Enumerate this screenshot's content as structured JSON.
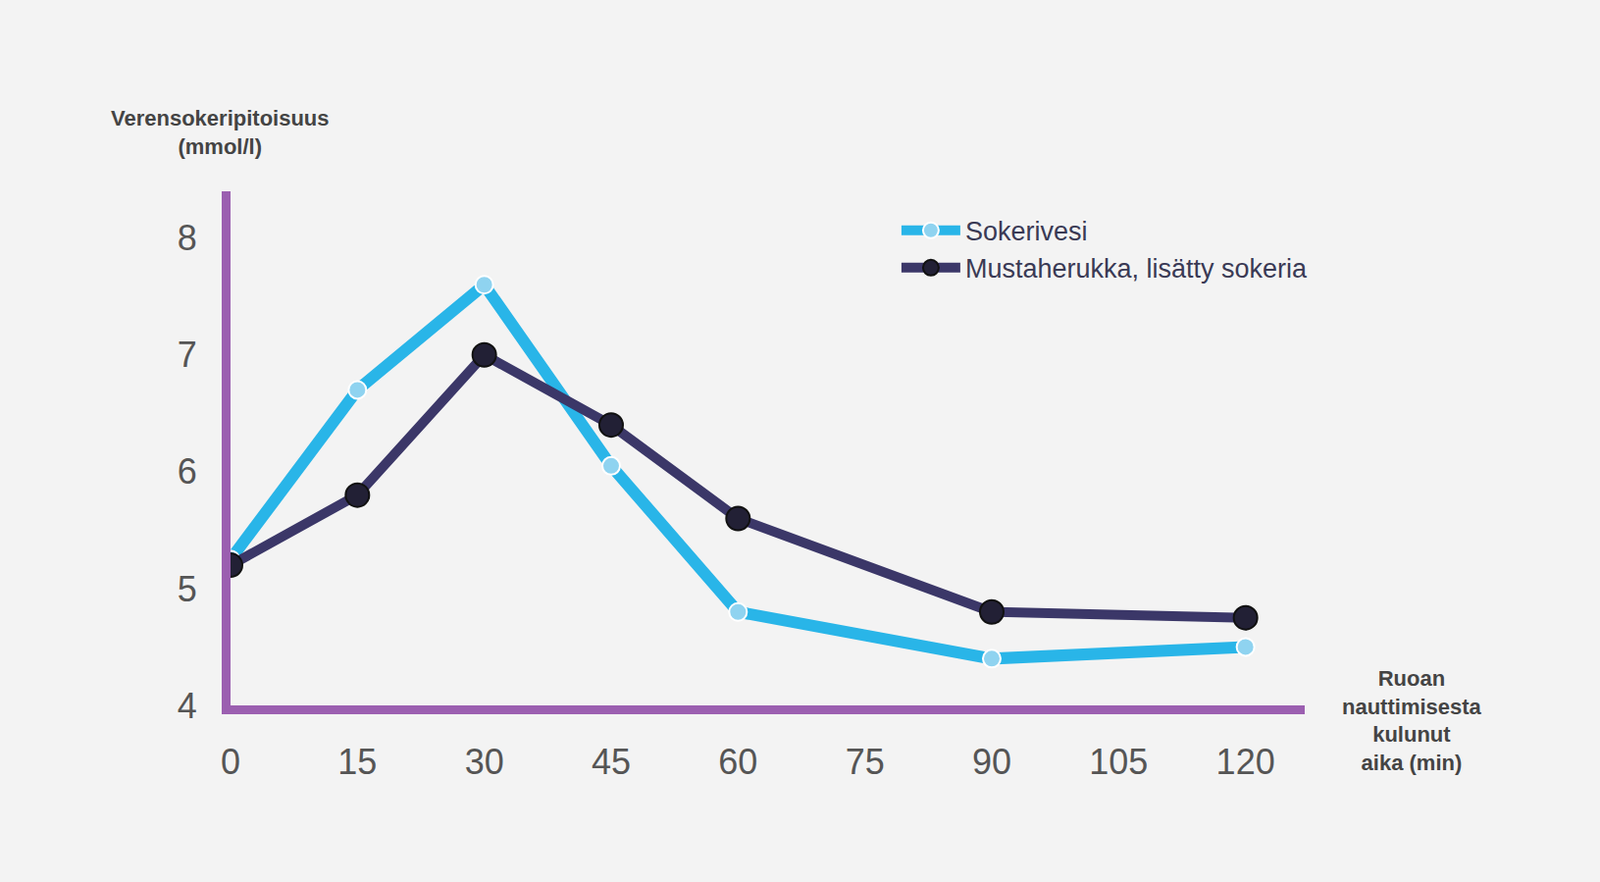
{
  "chart_data": {
    "type": "line",
    "x_label": "Ruoan nauttimisesta kulunut aika (min)",
    "y_label": "Verensokeripitoisuus (mmol/l)",
    "x": [
      0,
      15,
      30,
      45,
      60,
      90,
      120
    ],
    "series": [
      {
        "name": "Sokerivesi",
        "color": "#29b5e8",
        "marker": "circle",
        "values": [
          5.25,
          6.7,
          7.6,
          6.05,
          4.8,
          4.4,
          4.5
        ]
      },
      {
        "name": "Mustaherukka, lisätty sokeria",
        "color": "#3b3768",
        "marker": "circle",
        "values": [
          5.2,
          5.8,
          7.0,
          6.4,
          5.6,
          4.8,
          4.75
        ]
      }
    ],
    "xlim": [
      0,
      127
    ],
    "xticks": [
      0,
      15,
      30,
      45,
      60,
      75,
      90,
      105,
      120
    ],
    "ylim": [
      4,
      8.4
    ],
    "yticks": [
      4,
      5,
      6,
      7,
      8
    ],
    "grid": false,
    "legend": "top-right"
  }
}
